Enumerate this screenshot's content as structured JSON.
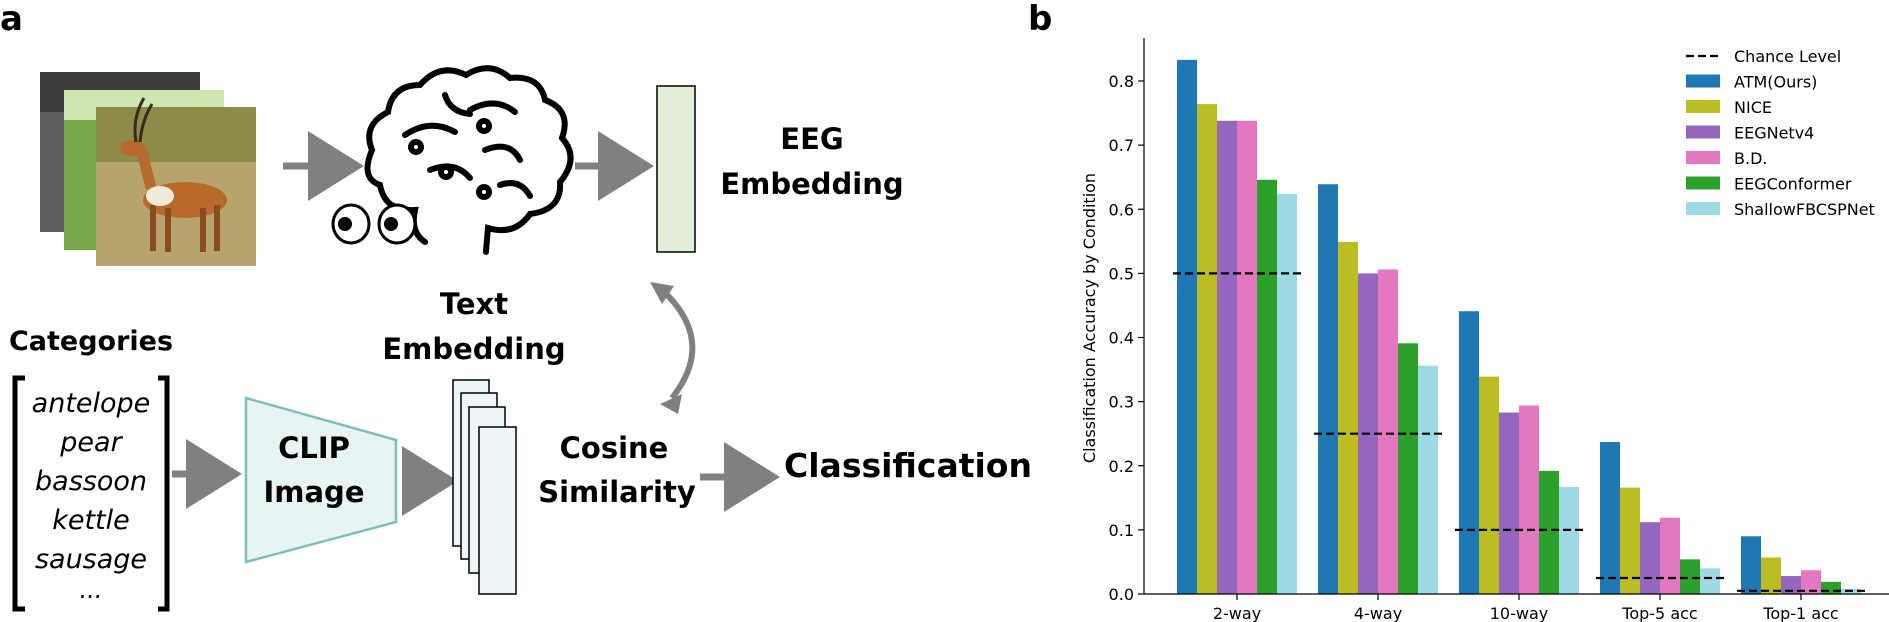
{
  "panel_a": {
    "letter": "a",
    "eeg_embedding": [
      "EEG",
      "Embedding"
    ],
    "text_embedding": [
      "Text",
      "Embedding"
    ],
    "categories_title": "Categories",
    "categories": [
      "antelope",
      "pear",
      "bassoon",
      "kettle",
      "sausage",
      "..."
    ],
    "clip_label": [
      "CLIP",
      "Image"
    ],
    "cosine_label": [
      "Cosine",
      "Similarity"
    ],
    "classification_label": "Classification"
  },
  "panel_b": {
    "letter": "b"
  },
  "colors": {
    "ATM(Ours)": "#1f77b4",
    "NICE": "#bcbd22",
    "EEGNetv4": "#9467bd",
    "B.D.": "#e377c2",
    "EEGConformer": "#2ca02c",
    "ShallowFBCSPNet": "#9edae5",
    "arrow": "#808080",
    "clip_fill": "#e8f4f4",
    "clip_stroke": "#7fbcbc",
    "eeg_box_fill": "#e2efda"
  },
  "chart_data": {
    "type": "bar",
    "title": "",
    "xlabel": "",
    "ylabel": "Classification Accuracy by Condition",
    "ylim": [
      0,
      0.87
    ],
    "yticks": [
      "0.0",
      "0.1",
      "0.2",
      "0.3",
      "0.4",
      "0.5",
      "0.6",
      "0.7",
      "0.8"
    ],
    "categories": [
      "2-way",
      "4-way",
      "10-way",
      "Top-5 acc",
      "Top-1 acc"
    ],
    "series": [
      {
        "name": "ATM(Ours)",
        "values": [
          0.833,
          0.639,
          0.441,
          0.237,
          0.09
        ]
      },
      {
        "name": "NICE",
        "values": [
          0.764,
          0.549,
          0.339,
          0.166,
          0.057
        ]
      },
      {
        "name": "EEGNetv4",
        "values": [
          0.738,
          0.5,
          0.283,
          0.112,
          0.028
        ]
      },
      {
        "name": "B.D.",
        "values": [
          0.738,
          0.506,
          0.294,
          0.119,
          0.037
        ]
      },
      {
        "name": "EEGConformer",
        "values": [
          0.646,
          0.391,
          0.192,
          0.054,
          0.019
        ]
      },
      {
        "name": "ShallowFBCSPNet",
        "values": [
          0.624,
          0.356,
          0.167,
          0.04,
          0.008
        ]
      }
    ],
    "chance_level": {
      "name": "Chance Level",
      "values": [
        0.5,
        0.25,
        0.1,
        0.025,
        0.005
      ]
    },
    "legend": {
      "placement": "top-right",
      "order": [
        "Chance Level",
        "ATM(Ours)",
        "NICE",
        "EEGNetv4",
        "B.D.",
        "EEGConformer",
        "ShallowFBCSPNet"
      ]
    },
    "grid": false
  }
}
